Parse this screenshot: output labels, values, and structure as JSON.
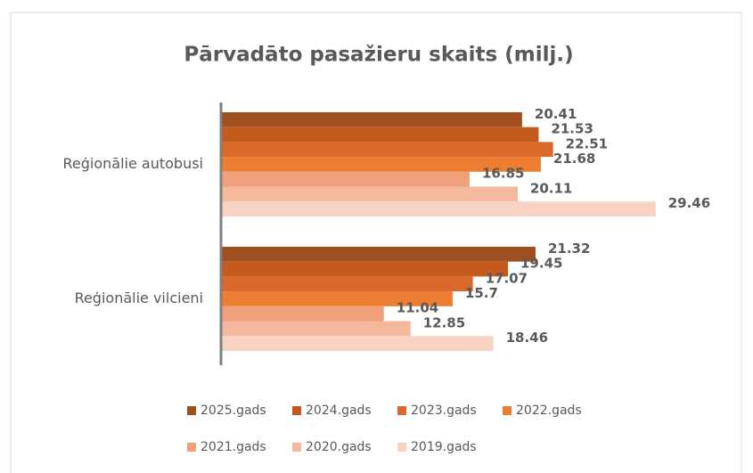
{
  "chart_data": {
    "type": "barh",
    "title": "Pārvadāto pasažieru skaits (milj.)",
    "categories": [
      "Reģionālie autobusi",
      "Reģionālie vilcieni"
    ],
    "series": [
      {
        "name": "2025.gads",
        "color": "#a0501e",
        "values": [
          20.41,
          21.32
        ]
      },
      {
        "name": "2024.gads",
        "color": "#c55a1f",
        "values": [
          21.53,
          19.45
        ]
      },
      {
        "name": "2023.gads",
        "color": "#d8692a",
        "values": [
          22.51,
          17.07
        ]
      },
      {
        "name": "2022.gads",
        "color": "#ed7d31",
        "values": [
          21.68,
          15.7
        ]
      },
      {
        "name": "2021.gads",
        "color": "#f0a07a",
        "values": [
          16.85,
          11.04
        ]
      },
      {
        "name": "2020.gads",
        "color": "#f4b89c",
        "values": [
          20.11,
          12.85
        ]
      },
      {
        "name": "2019.gads",
        "color": "#f8d3c4",
        "values": [
          29.46,
          18.46
        ]
      }
    ],
    "xlim": [
      0,
      36
    ],
    "legend": "bottom"
  }
}
